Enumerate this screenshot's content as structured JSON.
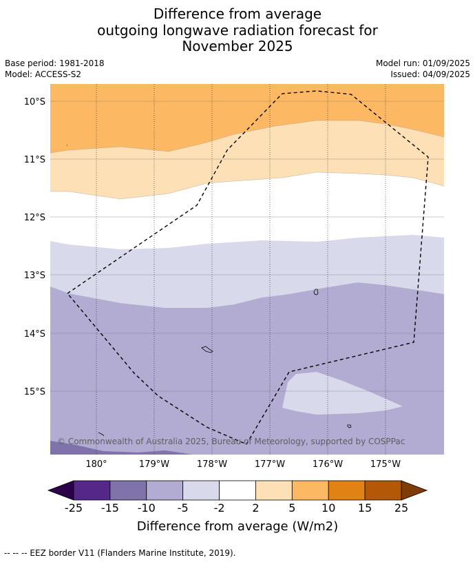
{
  "title": {
    "line1": "Difference from average",
    "line2": "outgoing longwave radiation forecast for",
    "line3": "November 2025"
  },
  "meta": {
    "base_period": "Base period: 1981-2018",
    "model": "Model: ACCESS-S2",
    "model_run": "Model run: 01/09/2025",
    "issued": "Issued: 04/09/2025"
  },
  "map": {
    "lat_labels": [
      "10°S",
      "11°S",
      "12°S",
      "13°S",
      "14°S",
      "15°S"
    ],
    "lon_labels": [
      "180°",
      "179°W",
      "178°W",
      "177°W",
      "176°W",
      "175°W"
    ],
    "copyright": "© Commonwealth of Australia 2025, Bureau of Meteorology, supported by COSPPac",
    "bands": {
      "plus_5_10": "#fdb863",
      "plus_2_5": "#fee0b6",
      "neutral": "#ffffff",
      "minus_2_5": "#d8daeb",
      "minus_5_10": "#b2abd2",
      "minus_10_15": "#8073ac"
    }
  },
  "colorbar": {
    "ticks": [
      "-25",
      "-15",
      "-10",
      "-5",
      "-2",
      "2",
      "5",
      "10",
      "15",
      "25"
    ],
    "colors": [
      "#542788",
      "#8073ac",
      "#b2abd2",
      "#d8daeb",
      "#ffffff",
      "#fee0b6",
      "#fdb863",
      "#e08214",
      "#b35806"
    ],
    "under_color": "#2d004b",
    "over_color": "#7f3b08",
    "label": "Difference from average (W/m2)"
  },
  "footer": "--  --  -- EEZ border V11 (Flanders Marine Institute, 2019)."
}
